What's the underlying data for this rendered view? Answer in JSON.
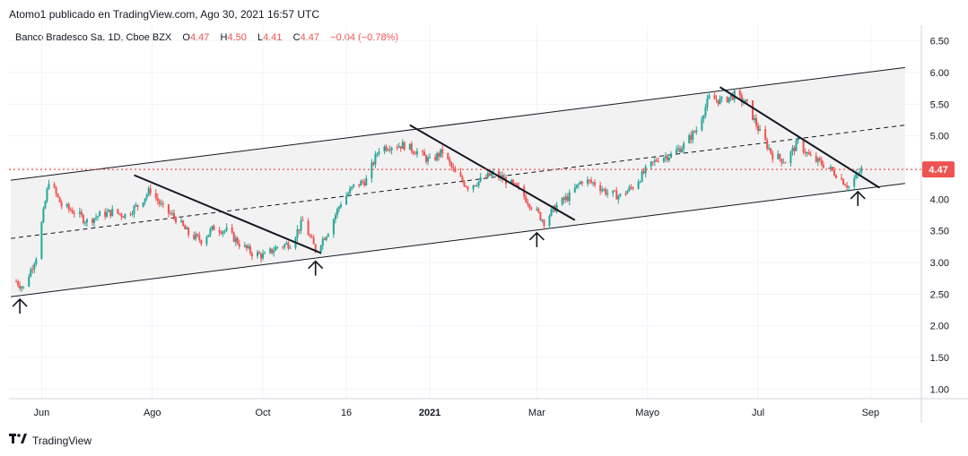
{
  "header": {
    "text": "Atomo1 publicado en TradingView.com, Ago 30, 2021 16:57 UTC"
  },
  "legend": {
    "symbol": "Banco Bradesco Sa, 1D, Cboe BZX",
    "open_label": "O",
    "open": "4.47",
    "high_label": "H",
    "high": "4.50",
    "low_label": "L",
    "low": "4.41",
    "close_label": "C",
    "close": "4.47",
    "change": "−0.04 (−0.78%)"
  },
  "footer": {
    "brand": "TradingView"
  },
  "colors": {
    "up": "#26a69a",
    "down": "#ef5350",
    "price_line": "#ef5350",
    "channel_fill": "#f2f2f2",
    "grid": "#f0f3fa"
  },
  "icons": [
    "up-arrow-icon",
    "tradingview-logo-icon"
  ],
  "chart_data": {
    "type": "candlestick",
    "y_ticks": [
      "6.50",
      "6.00",
      "5.50",
      "5.00",
      "4.50",
      "4.00",
      "3.50",
      "3.00",
      "2.50",
      "2.00",
      "1.50",
      "1.00"
    ],
    "ylim": [
      0.85,
      6.75
    ],
    "x_ticks": [
      "Jun",
      "Ago",
      "Oct",
      "16",
      "2021",
      "Mar",
      "Mayo",
      "Jul",
      "Sep"
    ],
    "last_price_label": "4.47",
    "last_price": 4.47,
    "grid": true,
    "close_series": [
      {
        "x": "2020-05-18",
        "y": 2.7
      },
      {
        "x": "2020-05-22",
        "y": 2.6
      },
      {
        "x": "2020-05-29",
        "y": 3.1
      },
      {
        "x": "2020-06-05",
        "y": 4.3
      },
      {
        "x": "2020-06-12",
        "y": 3.9
      },
      {
        "x": "2020-06-19",
        "y": 3.8
      },
      {
        "x": "2020-06-26",
        "y": 3.65
      },
      {
        "x": "2020-07-03",
        "y": 3.75
      },
      {
        "x": "2020-07-10",
        "y": 3.8
      },
      {
        "x": "2020-07-17",
        "y": 3.75
      },
      {
        "x": "2020-07-24",
        "y": 3.9
      },
      {
        "x": "2020-07-31",
        "y": 4.15
      },
      {
        "x": "2020-08-07",
        "y": 3.85
      },
      {
        "x": "2020-08-14",
        "y": 3.7
      },
      {
        "x": "2020-08-21",
        "y": 3.45
      },
      {
        "x": "2020-08-28",
        "y": 3.35
      },
      {
        "x": "2020-09-04",
        "y": 3.55
      },
      {
        "x": "2020-09-11",
        "y": 3.5
      },
      {
        "x": "2020-09-18",
        "y": 3.3
      },
      {
        "x": "2020-09-25",
        "y": 3.15
      },
      {
        "x": "2020-10-02",
        "y": 3.1
      },
      {
        "x": "2020-10-09",
        "y": 3.25
      },
      {
        "x": "2020-10-16",
        "y": 3.3
      },
      {
        "x": "2020-10-23",
        "y": 3.65
      },
      {
        "x": "2020-10-30",
        "y": 3.2
      },
      {
        "x": "2020-11-06",
        "y": 3.5
      },
      {
        "x": "2020-11-13",
        "y": 3.95
      },
      {
        "x": "2020-11-20",
        "y": 4.2
      },
      {
        "x": "2020-11-27",
        "y": 4.3
      },
      {
        "x": "2020-12-04",
        "y": 4.8
      },
      {
        "x": "2020-12-11",
        "y": 4.85
      },
      {
        "x": "2020-12-18",
        "y": 4.85
      },
      {
        "x": "2020-12-25",
        "y": 4.75
      },
      {
        "x": "2021-01-01",
        "y": 4.6
      },
      {
        "x": "2021-01-08",
        "y": 4.75
      },
      {
        "x": "2021-01-15",
        "y": 4.4
      },
      {
        "x": "2021-01-22",
        "y": 4.2
      },
      {
        "x": "2021-01-29",
        "y": 4.3
      },
      {
        "x": "2021-02-05",
        "y": 4.4
      },
      {
        "x": "2021-02-12",
        "y": 4.3
      },
      {
        "x": "2021-02-19",
        "y": 4.15
      },
      {
        "x": "2021-02-26",
        "y": 3.9
      },
      {
        "x": "2021-03-05",
        "y": 3.65
      },
      {
        "x": "2021-03-12",
        "y": 3.9
      },
      {
        "x": "2021-03-19",
        "y": 4.05
      },
      {
        "x": "2021-03-26",
        "y": 4.3
      },
      {
        "x": "2021-04-02",
        "y": 4.25
      },
      {
        "x": "2021-04-09",
        "y": 4.1
      },
      {
        "x": "2021-04-16",
        "y": 4.05
      },
      {
        "x": "2021-04-23",
        "y": 4.2
      },
      {
        "x": "2021-04-30",
        "y": 4.45
      },
      {
        "x": "2021-05-07",
        "y": 4.65
      },
      {
        "x": "2021-05-14",
        "y": 4.7
      },
      {
        "x": "2021-05-21",
        "y": 4.85
      },
      {
        "x": "2021-05-28",
        "y": 5.1
      },
      {
        "x": "2021-06-04",
        "y": 5.6
      },
      {
        "x": "2021-06-11",
        "y": 5.55
      },
      {
        "x": "2021-06-18",
        "y": 5.65
      },
      {
        "x": "2021-06-25",
        "y": 5.5
      },
      {
        "x": "2021-07-02",
        "y": 5.05
      },
      {
        "x": "2021-07-09",
        "y": 4.7
      },
      {
        "x": "2021-07-16",
        "y": 4.6
      },
      {
        "x": "2021-07-23",
        "y": 4.9
      },
      {
        "x": "2021-07-30",
        "y": 4.65
      },
      {
        "x": "2021-08-06",
        "y": 4.55
      },
      {
        "x": "2021-08-13",
        "y": 4.4
      },
      {
        "x": "2021-08-20",
        "y": 4.2
      },
      {
        "x": "2021-08-27",
        "y": 4.47
      }
    ],
    "drawings": {
      "channel_upper": [
        {
          "x": "2020-05-15",
          "y": 4.3
        },
        {
          "x": "2021-09-20",
          "y": 6.08
        }
      ],
      "channel_lower": [
        {
          "x": "2020-05-15",
          "y": 2.46
        },
        {
          "x": "2021-09-20",
          "y": 4.25
        }
      ],
      "channel_mid": [
        {
          "x": "2020-05-15",
          "y": 3.38
        },
        {
          "x": "2021-09-20",
          "y": 5.17
        }
      ],
      "trendlines": [
        [
          {
            "x": "2020-07-22",
            "y": 4.38
          },
          {
            "x": "2020-11-02",
            "y": 3.15
          }
        ],
        [
          {
            "x": "2020-12-21",
            "y": 5.17
          },
          {
            "x": "2021-03-22",
            "y": 3.67
          }
        ],
        [
          {
            "x": "2021-06-10",
            "y": 5.77
          },
          {
            "x": "2021-09-06",
            "y": 4.18
          }
        ]
      ],
      "arrows": [
        {
          "x": "2020-05-20",
          "y": 2.25
        },
        {
          "x": "2020-10-30",
          "y": 2.85
        },
        {
          "x": "2021-03-01",
          "y": 3.3
        },
        {
          "x": "2021-08-25",
          "y": 3.95
        }
      ]
    }
  }
}
